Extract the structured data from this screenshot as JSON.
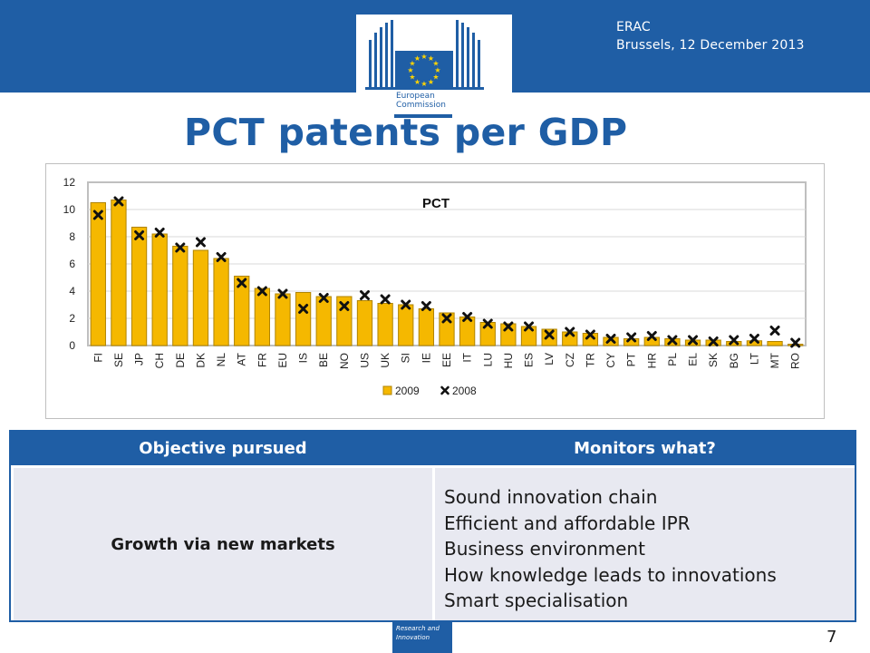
{
  "header": {
    "event_name": "ERAC",
    "event_date_place": "Brussels, 12 December 2013",
    "logo_text_line1": "European",
    "logo_text_line2": "Commission"
  },
  "slide": {
    "title": "PCT patents per GDP",
    "page_number": "7"
  },
  "footer": {
    "label_line1": "Research and",
    "label_line2": "Innovation"
  },
  "colors": {
    "brand_blue": "#1f5ea5",
    "bar_fill": "#f5b800",
    "bar_stroke": "#b08400",
    "marker": "#111111",
    "cell_background": "#e8e9f1"
  },
  "chart_data": {
    "type": "bar",
    "title": "PCT",
    "categories": [
      "FI",
      "SE",
      "JP",
      "CH",
      "DE",
      "DK",
      "NL",
      "AT",
      "FR",
      "EU",
      "IS",
      "BE",
      "NO",
      "US",
      "UK",
      "SI",
      "IE",
      "EE",
      "IT",
      "LU",
      "HU",
      "ES",
      "LV",
      "CZ",
      "TR",
      "CY",
      "PT",
      "HR",
      "PL",
      "EL",
      "SK",
      "BG",
      "LT",
      "MT",
      "RO"
    ],
    "series": [
      {
        "name": "2009",
        "mark": "bar",
        "values": [
          10.5,
          10.7,
          8.7,
          8.2,
          7.3,
          7.0,
          6.4,
          5.1,
          4.2,
          3.8,
          3.9,
          3.6,
          3.6,
          3.3,
          3.1,
          3.0,
          2.7,
          2.4,
          2.1,
          1.7,
          1.6,
          1.4,
          1.2,
          1.0,
          0.9,
          0.6,
          0.5,
          0.6,
          0.5,
          0.4,
          0.4,
          0.3,
          0.35,
          0.3,
          0.1
        ]
      },
      {
        "name": "2008",
        "mark": "x",
        "values": [
          9.6,
          10.6,
          8.1,
          8.3,
          7.2,
          7.6,
          6.5,
          4.6,
          4.0,
          3.8,
          2.7,
          3.5,
          2.9,
          3.7,
          3.4,
          3.0,
          2.9,
          2.0,
          2.1,
          1.6,
          1.4,
          1.4,
          0.8,
          1.0,
          0.8,
          0.5,
          0.6,
          0.7,
          0.4,
          0.4,
          0.3,
          0.4,
          0.5,
          1.1,
          0.2
        ]
      }
    ],
    "ylim": [
      0,
      12
    ],
    "yticks": [
      0,
      2,
      4,
      6,
      8,
      10,
      12
    ],
    "grid": true,
    "legend": "bottom-center",
    "xlabel": "",
    "ylabel": ""
  },
  "table": {
    "headers": [
      "Objective pursued",
      "Monitors what?"
    ],
    "objective": "Growth via new markets",
    "monitors": [
      "Sound innovation chain",
      "Efficient and affordable IPR",
      "Business environment",
      "How knowledge leads to innovations",
      "Smart specialisation"
    ]
  }
}
